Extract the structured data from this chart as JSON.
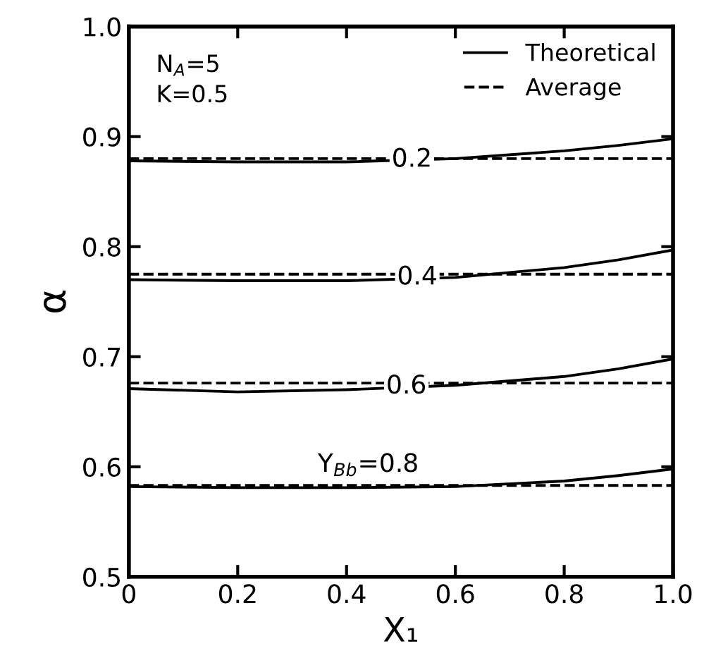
{
  "chart_data": {
    "type": "line",
    "xlabel": "X₁",
    "ylabel": "α",
    "xlim": [
      0,
      1.0
    ],
    "ylim": [
      0.5,
      1.0
    ],
    "xticks": [
      {
        "value": 0,
        "label": "0"
      },
      {
        "value": 0.2,
        "label": "0.2"
      },
      {
        "value": 0.4,
        "label": "0.4"
      },
      {
        "value": 0.6,
        "label": "0.6"
      },
      {
        "value": 0.8,
        "label": "0.8"
      },
      {
        "value": 1.0,
        "label": "1.0"
      }
    ],
    "yticks": [
      {
        "value": 0.5,
        "label": "0.5"
      },
      {
        "value": 0.6,
        "label": "0.6"
      },
      {
        "value": 0.7,
        "label": "0.7"
      },
      {
        "value": 0.8,
        "label": "0.8"
      },
      {
        "value": 0.9,
        "label": "0.9"
      },
      {
        "value": 1.0,
        "label": "1.0"
      }
    ],
    "x": [
      0,
      0.2,
      0.4,
      0.6,
      0.8,
      0.9,
      1.0
    ],
    "series": [
      {
        "name": "Theoretical",
        "color": "#000000",
        "line_style": "solid",
        "values": [
          0.878,
          0.877,
          0.877,
          0.88,
          0.887,
          0.892,
          0.898
        ]
      },
      {
        "color": "#000000",
        "line_style": "solid",
        "values": [
          0.77,
          0.769,
          0.769,
          0.772,
          0.781,
          0.788,
          0.797
        ]
      },
      {
        "color": "#000000",
        "line_style": "solid",
        "values": [
          0.671,
          0.668,
          0.67,
          0.674,
          0.682,
          0.689,
          0.698
        ]
      },
      {
        "color": "#000000",
        "line_style": "solid",
        "values": [
          0.582,
          0.581,
          0.581,
          0.582,
          0.587,
          0.592,
          0.598
        ]
      },
      {
        "name": "Average",
        "color": "#000000",
        "line_style": "dashed",
        "values": [
          0.88,
          0.88,
          0.88,
          0.88,
          0.88,
          0.88,
          0.88
        ]
      },
      {
        "color": "#000000",
        "line_style": "dashed",
        "values": [
          0.775,
          0.775,
          0.775,
          0.775,
          0.775,
          0.775,
          0.775
        ]
      },
      {
        "color": "#000000",
        "line_style": "dashed",
        "values": [
          0.676,
          0.676,
          0.676,
          0.676,
          0.676,
          0.676,
          0.676
        ]
      },
      {
        "color": "#000000",
        "line_style": "dashed",
        "values": [
          0.583,
          0.583,
          0.583,
          0.583,
          0.583,
          0.583,
          0.583
        ]
      }
    ],
    "annotations": [
      "N$_{A}$=5",
      "K=0.5",
      {
        "text": "0.2",
        "x": 0.52,
        "y": 0.879
      },
      {
        "text": "0.4",
        "x": 0.53,
        "y": 0.772
      },
      {
        "text": "0.6",
        "x": 0.51,
        "y": 0.673
      },
      {
        "text": "Y$_{Bb}$=0.8",
        "x": 0.44,
        "y": 0.582
      }
    ],
    "legend": "top right",
    "grid": false
  }
}
